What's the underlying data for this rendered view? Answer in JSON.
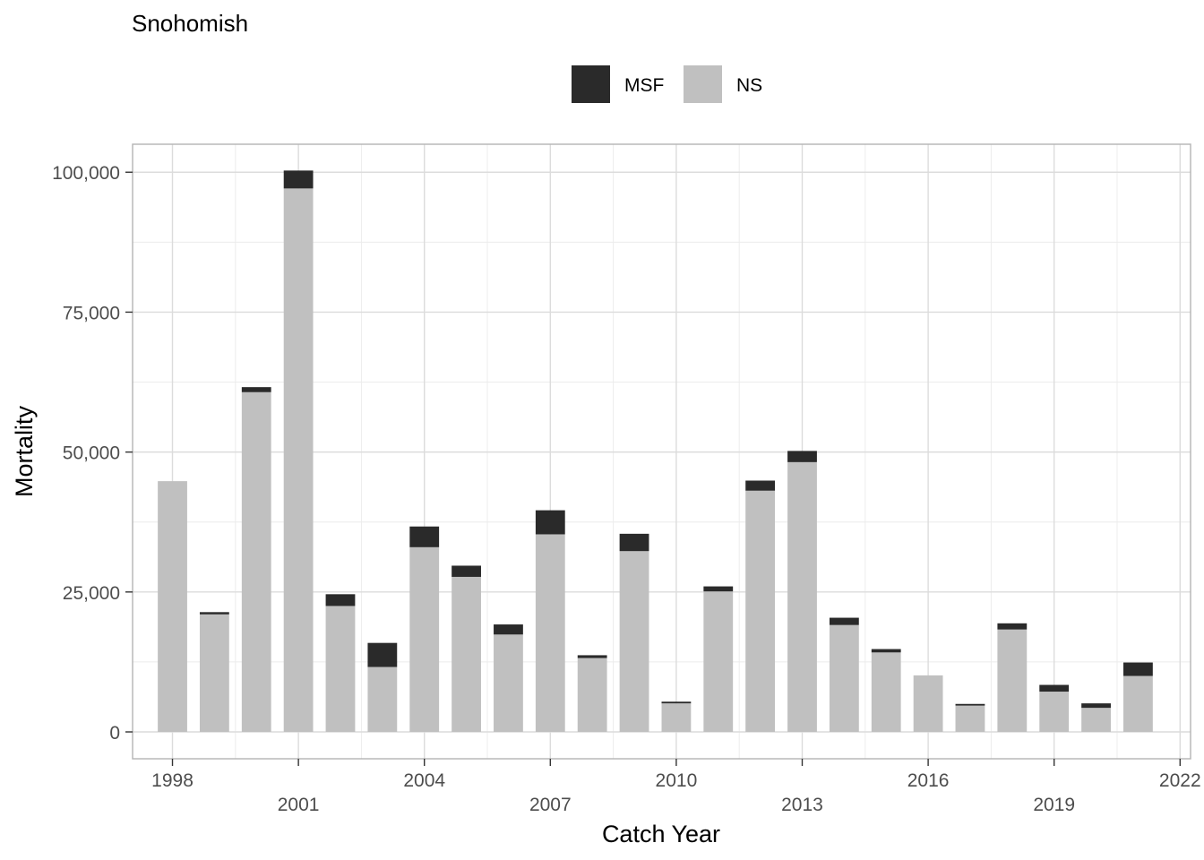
{
  "chart_data": {
    "type": "bar",
    "stacked": true,
    "title": "Snohomish",
    "xlabel": "Catch Year",
    "ylabel": "Mortality",
    "x_ticks": [
      1998,
      2001,
      2004,
      2007,
      2010,
      2013,
      2016,
      2019,
      2022
    ],
    "y_ticks": [
      0,
      25000,
      50000,
      75000,
      100000
    ],
    "y_tick_labels": [
      "0",
      "25,000",
      "50,000",
      "75,000",
      "100,000"
    ],
    "x_range": [
      1997.05,
      2022.25
    ],
    "ylim": [
      -4800,
      105000
    ],
    "legend_position": "top",
    "categories": [
      1998,
      1999,
      2000,
      2001,
      2002,
      2003,
      2004,
      2005,
      2006,
      2007,
      2008,
      2009,
      2010,
      2011,
      2012,
      2013,
      2014,
      2015,
      2016,
      2017,
      2018,
      2019,
      2020,
      2021
    ],
    "series": [
      {
        "name": "NS",
        "color": "#c0c0c0",
        "values": [
          44800,
          21000,
          60700,
          97100,
          22500,
          11600,
          33000,
          27700,
          17400,
          35300,
          13200,
          32300,
          5100,
          25100,
          43100,
          48200,
          19100,
          14200,
          10100,
          4700,
          18300,
          7200,
          4300,
          10000
        ]
      },
      {
        "name": "MSF",
        "color": "#2a2a2a",
        "values": [
          0,
          400,
          900,
          3200,
          2100,
          4300,
          3700,
          2000,
          1800,
          4300,
          500,
          3100,
          300,
          900,
          1800,
          2000,
          1300,
          600,
          0,
          300,
          1100,
          1200,
          800,
          2400
        ]
      }
    ]
  }
}
